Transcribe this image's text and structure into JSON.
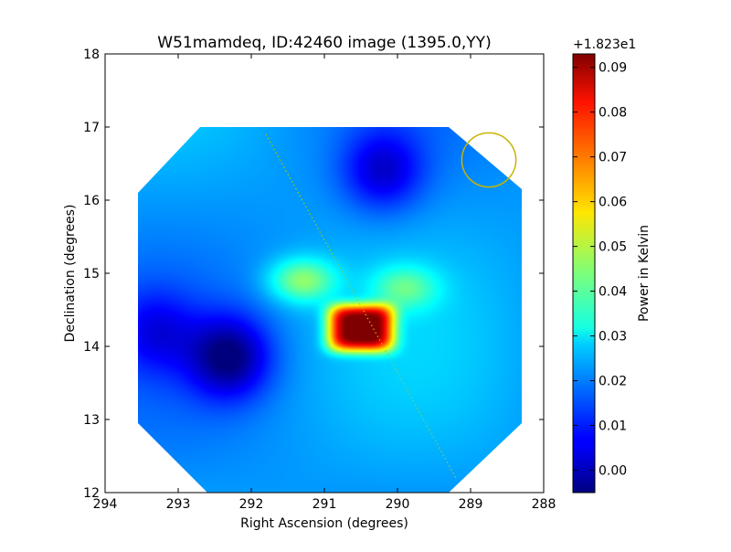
{
  "chart_data": {
    "type": "heatmap",
    "title": "W51mamdeq, ID:42460 image (1395.0,YY)",
    "xlabel": "Right Ascension (degrees)",
    "ylabel": "Declination (degrees)",
    "xlim": [
      294,
      288
    ],
    "ylim": [
      12,
      18
    ],
    "x_ticks": [
      "294",
      "293",
      "292",
      "291",
      "290",
      "289",
      "288"
    ],
    "y_ticks": [
      "12",
      "13",
      "14",
      "15",
      "16",
      "17",
      "18"
    ],
    "colorbar": {
      "label": "Power in Kelvin",
      "offset_text": "+1.823e1",
      "range": [
        -0.005,
        0.093
      ],
      "ticks": [
        "0.00",
        "0.01",
        "0.02",
        "0.03",
        "0.04",
        "0.05",
        "0.06",
        "0.07",
        "0.08",
        "0.09"
      ],
      "colormap": "jet"
    },
    "field_of_view": "octagon",
    "background_level": 0.022,
    "features": [
      {
        "kind": "peak",
        "ra": 290.5,
        "dec": 14.25,
        "value": 0.093
      },
      {
        "kind": "blob",
        "ra": 291.3,
        "dec": 14.9,
        "value": 0.045
      },
      {
        "kind": "blob",
        "ra": 289.9,
        "dec": 14.8,
        "value": 0.038
      },
      {
        "kind": "trough",
        "ra": 292.3,
        "dec": 13.85,
        "value": -0.003
      },
      {
        "kind": "trough",
        "ra": 290.2,
        "dec": 16.4,
        "value": 0.004
      },
      {
        "kind": "trough",
        "ra": 293.3,
        "dec": 14.2,
        "value": 0.01
      }
    ],
    "beam_circle": {
      "ra": 288.75,
      "dec": 16.55,
      "radius_deg": 0.37,
      "color": "#c8b400"
    },
    "track_line": {
      "ra_start": 291.8,
      "dec_start": 16.9,
      "ra_end": 289.2,
      "dec_end": 12.2,
      "color": "#aac800"
    }
  }
}
